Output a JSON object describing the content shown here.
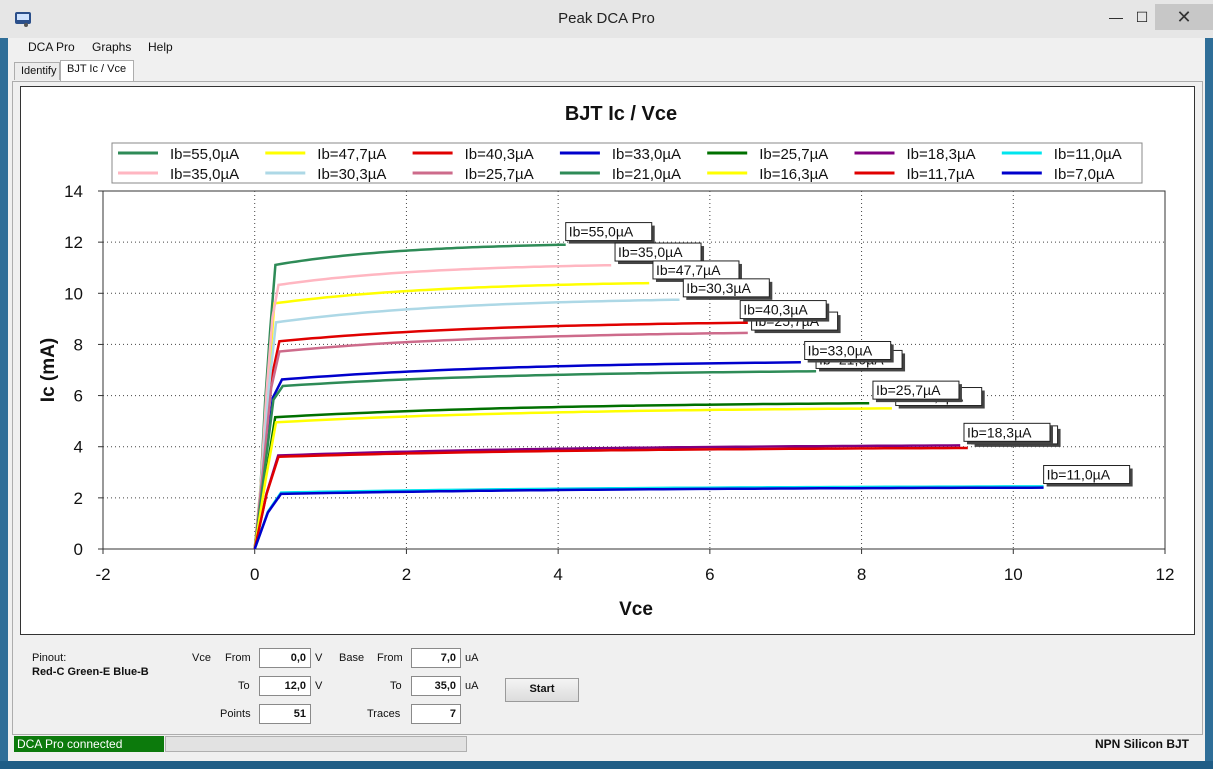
{
  "window": {
    "title": "Peak DCA Pro",
    "min_glyph": "—",
    "max_glyph": "☐",
    "close_glyph": "✕"
  },
  "menu": [
    "DCA Pro",
    "Graphs",
    "Help"
  ],
  "tabs": [
    "Identify",
    "BJT Ic / Vce"
  ],
  "chart_data": {
    "type": "line",
    "title": "BJT Ic / Vce",
    "xlabel": "Vce",
    "ylabel": "Ic (mA)",
    "xlim": [
      -2,
      12
    ],
    "ylim": [
      0,
      14
    ],
    "xticks": [
      -2,
      0,
      2,
      4,
      6,
      8,
      10,
      12
    ],
    "yticks": [
      0,
      2,
      4,
      6,
      8,
      10,
      12,
      14
    ],
    "grid": true,
    "legend_position": "top",
    "series": [
      {
        "name": "Ib=55,0µA",
        "color": "#2e8b57",
        "sat": 11.1,
        "end": 11.9,
        "xend": 4.1
      },
      {
        "name": "Ib=47,7µA",
        "color": "#ffff00",
        "sat": 9.6,
        "end": 10.4,
        "xend": 5.2
      },
      {
        "name": "Ib=40,3µA",
        "color": "#e00000",
        "sat": 8.1,
        "end": 8.85,
        "xend": 6.5
      },
      {
        "name": "Ib=33,0µA",
        "color": "#0000cc",
        "sat": 6.6,
        "end": 7.3,
        "xend": 7.2
      },
      {
        "name": "Ib=25,7µA",
        "color": "#007000",
        "sat": 5.15,
        "end": 5.7,
        "xend": 8.1
      },
      {
        "name": "Ib=18,3µA",
        "color": "#800080",
        "sat": 3.65,
        "end": 4.05,
        "xend": 9.3
      },
      {
        "name": "Ib=11,0µA",
        "color": "#00e5ee",
        "sat": 2.2,
        "end": 2.45,
        "xend": 10.4
      },
      {
        "name": "Ib=35,0µA",
        "color": "#ffb6c1",
        "sat": 10.3,
        "end": 11.1,
        "xend": 4.7
      },
      {
        "name": "Ib=30,3µA",
        "color": "#add8e6",
        "sat": 8.85,
        "end": 9.75,
        "xend": 5.6
      },
      {
        "name": "Ib=25,7µA",
        "color": "#cd6b8b",
        "sat": 7.7,
        "end": 8.45,
        "xend": 6.5
      },
      {
        "name": "Ib=21,0µA",
        "color": "#2e8b57",
        "sat": 6.35,
        "end": 6.95,
        "xend": 7.4
      },
      {
        "name": "Ib=16,3µA",
        "color": "#ffff00",
        "sat": 4.95,
        "end": 5.5,
        "xend": 8.4
      },
      {
        "name": "Ib=11,7µA",
        "color": "#e00000",
        "sat": 3.6,
        "end": 3.95,
        "xend": 9.4
      },
      {
        "name": "Ib=7,0µA",
        "color": "#0000cc",
        "sat": 2.15,
        "end": 2.4,
        "xend": 10.4
      }
    ],
    "annotations": [
      {
        "text": "Ib=55,0µA",
        "x": 4.1,
        "y": 12.1
      },
      {
        "text": "Ib=35,0µA",
        "x": 4.75,
        "y": 11.3
      },
      {
        "text": "Ib=47,7µA",
        "x": 5.25,
        "y": 10.6
      },
      {
        "text": "Ib=30,3µA",
        "x": 5.65,
        "y": 9.9
      },
      {
        "text": "Ib=25,7µA",
        "x": 6.55,
        "y": 8.6
      },
      {
        "text": "Ib=40,3µA",
        "x": 6.4,
        "y": 9.05
      },
      {
        "text": "Ib=21,0µA",
        "x": 7.4,
        "y": 7.1
      },
      {
        "text": "Ib=33,0µA",
        "x": 7.25,
        "y": 7.45
      },
      {
        "text": "Ib=16,3µA",
        "x": 8.45,
        "y": 5.65
      },
      {
        "text": "Ib=25,7µA",
        "x": 8.15,
        "y": 5.9
      },
      {
        "text": "Ib=11,7µA",
        "x": 9.45,
        "y": 4.15
      },
      {
        "text": "Ib=18,3µA",
        "x": 9.35,
        "y": 4.25
      },
      {
        "text": "Ib=11,0µA",
        "x": 10.4,
        "y": 2.6
      }
    ]
  },
  "controls": {
    "pinout_label": "Pinout:",
    "pinout_value": "Red-C Green-E Blue-B",
    "vce_label": "Vce",
    "from_label": "From",
    "to_label": "To",
    "vce_from": "0,0",
    "vce_to": "12,0",
    "vce_unit": "V",
    "points_label": "Points",
    "points": "51",
    "base_label": "Base",
    "base_from": "7,0",
    "base_to": "35,0",
    "base_unit": "uA",
    "traces_label": "Traces",
    "traces": "7",
    "start_label": "Start"
  },
  "status": {
    "connection": "DCA Pro connected",
    "device": "NPN Silicon BJT"
  }
}
